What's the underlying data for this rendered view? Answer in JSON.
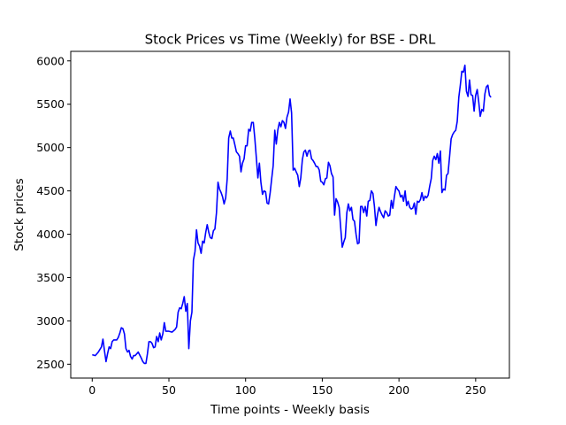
{
  "chart_data": {
    "type": "line",
    "title": "Stock Prices vs Time (Weekly) for BSE - DRL",
    "xlabel": "Time points - Weekly basis",
    "ylabel": "Stock prices",
    "xlim": [
      -14,
      272
    ],
    "ylim": [
      2340,
      6110
    ],
    "xticks": [
      0,
      50,
      100,
      150,
      200,
      250
    ],
    "yticks": [
      2500,
      3000,
      3500,
      4000,
      4500,
      5000,
      5500,
      6000
    ],
    "grid": false,
    "line_color": "#0000ff",
    "series": [
      {
        "x": [
          0,
          2,
          4,
          6,
          7,
          8,
          9,
          10,
          11,
          12,
          13,
          14,
          16,
          17,
          18,
          19,
          20,
          21,
          22,
          23,
          24,
          25,
          26,
          27,
          28,
          30,
          32,
          33,
          34,
          35,
          36,
          37,
          38,
          39,
          40,
          41,
          42,
          43,
          44,
          45,
          46,
          47,
          48,
          50,
          52,
          54,
          55,
          56,
          57,
          58,
          59,
          60,
          61,
          62,
          63,
          64,
          65,
          66,
          67,
          68,
          69,
          70,
          71,
          72,
          73,
          74,
          75,
          76,
          77,
          78,
          79,
          80,
          81,
          82,
          83,
          84,
          85,
          86,
          87,
          88,
          89,
          90,
          91,
          92,
          93,
          94,
          95,
          96,
          97,
          98,
          99,
          100,
          101,
          102,
          103,
          104,
          105,
          106,
          107,
          108,
          109,
          110,
          111,
          112,
          113,
          114,
          115,
          116,
          117,
          118,
          119,
          120,
          121,
          122,
          123,
          124,
          125,
          126,
          127,
          128,
          129,
          130,
          131,
          132,
          133,
          134,
          135,
          136,
          137,
          138,
          139,
          140,
          141,
          142,
          143,
          144,
          145,
          146,
          147,
          148,
          149,
          150,
          151,
          152,
          153,
          154,
          155,
          156,
          157,
          158,
          159,
          160,
          161,
          162,
          163,
          164,
          165,
          166,
          167,
          168,
          169,
          170,
          171,
          172,
          173,
          174,
          175,
          176,
          177,
          178,
          179,
          180,
          181,
          182,
          183,
          184,
          185,
          186,
          187,
          188,
          189,
          190,
          191,
          192,
          193,
          194,
          195,
          196,
          197,
          198,
          199,
          200,
          201,
          202,
          203,
          204,
          205,
          206,
          207,
          208,
          209,
          210,
          211,
          212,
          213,
          214,
          215,
          216,
          217,
          218,
          219,
          220,
          221,
          222,
          223,
          224,
          225,
          226,
          227,
          228,
          229,
          230,
          231,
          232,
          233,
          234,
          235,
          236,
          237,
          238,
          239,
          240,
          241,
          242,
          243,
          244,
          245,
          246,
          247,
          248,
          249,
          250,
          251,
          252,
          253,
          254,
          255,
          256,
          257,
          258,
          259,
          260
        ],
        "y": [
          2610,
          2600,
          2640,
          2700,
          2790,
          2650,
          2530,
          2620,
          2700,
          2680,
          2760,
          2780,
          2780,
          2810,
          2860,
          2920,
          2910,
          2850,
          2680,
          2640,
          2660,
          2590,
          2560,
          2600,
          2600,
          2640,
          2570,
          2530,
          2510,
          2510,
          2620,
          2760,
          2760,
          2740,
          2690,
          2700,
          2820,
          2760,
          2860,
          2780,
          2850,
          2980,
          2880,
          2880,
          2870,
          2900,
          2930,
          3100,
          3150,
          3140,
          3200,
          3280,
          3110,
          3200,
          2680,
          3000,
          3100,
          3700,
          3800,
          4050,
          3900,
          3860,
          3780,
          3920,
          3900,
          4020,
          4110,
          4020,
          3960,
          3950,
          4040,
          4060,
          4250,
          4600,
          4520,
          4480,
          4430,
          4350,
          4420,
          4640,
          5110,
          5190,
          5110,
          5110,
          5030,
          4950,
          4930,
          4900,
          4720,
          4820,
          4870,
          5020,
          5020,
          5210,
          5190,
          5290,
          5290,
          5110,
          4890,
          4650,
          4820,
          4600,
          4460,
          4500,
          4490,
          4360,
          4350,
          4480,
          4640,
          4790,
          5200,
          5040,
          5200,
          5290,
          5240,
          5310,
          5290,
          5220,
          5350,
          5410,
          5560,
          5400,
          4740,
          4760,
          4720,
          4680,
          4550,
          4650,
          4860,
          4950,
          4970,
          4900,
          4960,
          4970,
          4870,
          4850,
          4820,
          4780,
          4780,
          4740,
          4610,
          4600,
          4570,
          4640,
          4650,
          4830,
          4790,
          4700,
          4660,
          4220,
          4410,
          4370,
          4310,
          4080,
          3850,
          3910,
          3960,
          4250,
          4350,
          4270,
          4310,
          4170,
          4150,
          4000,
          3890,
          3900,
          4320,
          4320,
          4250,
          4320,
          4210,
          4380,
          4390,
          4500,
          4470,
          4320,
          4100,
          4230,
          4310,
          4260,
          4220,
          4190,
          4270,
          4250,
          4210,
          4220,
          4390,
          4300,
          4430,
          4550,
          4520,
          4500,
          4430,
          4450,
          4380,
          4500,
          4330,
          4380,
          4310,
          4290,
          4300,
          4360,
          4230,
          4380,
          4370,
          4400,
          4480,
          4390,
          4440,
          4420,
          4450,
          4550,
          4640,
          4850,
          4900,
          4860,
          4930,
          4820,
          4960,
          4480,
          4520,
          4510,
          4680,
          4700,
          4900,
          5100,
          5150,
          5180,
          5200,
          5300,
          5580,
          5720,
          5880,
          5870,
          5950,
          5650,
          5590,
          5780,
          5610,
          5600,
          5420,
          5600,
          5670,
          5530,
          5360,
          5440,
          5420,
          5620,
          5700,
          5720,
          5600,
          5580
        ]
      }
    ]
  }
}
